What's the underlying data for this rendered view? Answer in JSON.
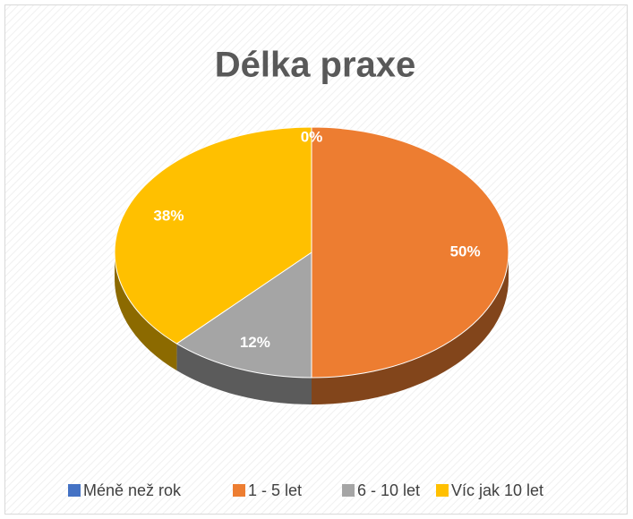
{
  "chart_data": {
    "type": "pie",
    "title": "Délka praxe",
    "categories": [
      "Méně než rok",
      "1 - 5 let",
      "6 - 10 let",
      "Víc jak 10 let"
    ],
    "values": [
      0,
      50,
      12,
      38
    ],
    "value_labels": [
      "0%",
      "50%",
      "12%",
      "38%"
    ],
    "colors": [
      "#4472c4",
      "#ed7d31",
      "#a5a5a5",
      "#ffc000"
    ],
    "legend": "bottom"
  }
}
